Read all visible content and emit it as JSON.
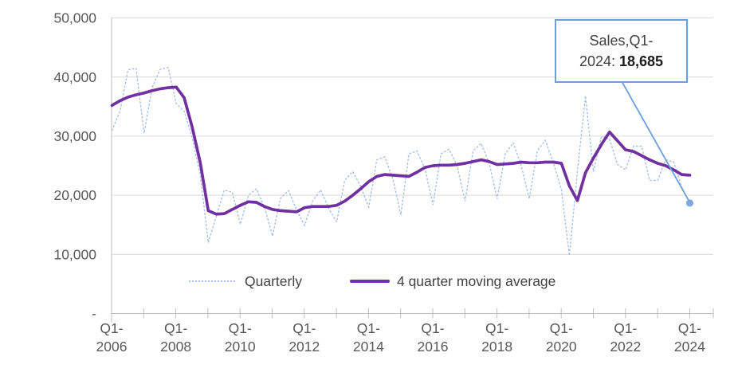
{
  "chart_data": {
    "type": "line",
    "title": "",
    "xlabel": "",
    "ylabel": "",
    "grid": true,
    "legend_position": "bottom-inside",
    "y_axis": {
      "min": 0,
      "max": 50000,
      "step": 10000
    },
    "y_tick_labels": [
      "50,000",
      "40,000",
      "30,000",
      "20,000",
      "10,000",
      "-"
    ],
    "x_tick_labels": [
      "Q1-2006",
      "Q1-2008",
      "Q1-2010",
      "Q1-2012",
      "Q1-2014",
      "Q1-2016",
      "Q1-2018",
      "Q1-2020",
      "Q1-2022",
      "Q1-2024"
    ],
    "quarters": [
      "Q1-2006",
      "Q2-2006",
      "Q3-2006",
      "Q4-2006",
      "Q1-2007",
      "Q2-2007",
      "Q3-2007",
      "Q4-2007",
      "Q1-2008",
      "Q2-2008",
      "Q3-2008",
      "Q4-2008",
      "Q1-2009",
      "Q2-2009",
      "Q3-2009",
      "Q4-2009",
      "Q1-2010",
      "Q2-2010",
      "Q3-2010",
      "Q4-2010",
      "Q1-2011",
      "Q2-2011",
      "Q3-2011",
      "Q4-2011",
      "Q1-2012",
      "Q2-2012",
      "Q3-2012",
      "Q4-2012",
      "Q1-2013",
      "Q2-2013",
      "Q3-2013",
      "Q4-2013",
      "Q1-2014",
      "Q2-2014",
      "Q3-2014",
      "Q4-2014",
      "Q1-2015",
      "Q2-2015",
      "Q3-2015",
      "Q4-2015",
      "Q1-2016",
      "Q2-2016",
      "Q3-2016",
      "Q4-2016",
      "Q1-2017",
      "Q2-2017",
      "Q3-2017",
      "Q4-2017",
      "Q1-2018",
      "Q2-2018",
      "Q3-2018",
      "Q4-2018",
      "Q1-2019",
      "Q2-2019",
      "Q3-2019",
      "Q4-2019",
      "Q1-2020",
      "Q2-2020",
      "Q3-2020",
      "Q4-2020",
      "Q1-2021",
      "Q2-2021",
      "Q3-2021",
      "Q4-2021",
      "Q1-2022",
      "Q2-2022",
      "Q3-2022",
      "Q4-2022",
      "Q1-2023",
      "Q2-2023",
      "Q3-2023",
      "Q4-2023",
      "Q1-2024"
    ],
    "series": [
      {
        "name": "Quarterly",
        "style": "dotted",
        "color": "#a9bfe7",
        "values": [
          31000,
          34200,
          41200,
          41500,
          30500,
          38200,
          41300,
          41600,
          35500,
          34200,
          29700,
          23400,
          12000,
          16500,
          20900,
          20500,
          15100,
          20000,
          21100,
          18000,
          13100,
          19500,
          20800,
          17500,
          14900,
          19000,
          20900,
          17800,
          15500,
          22500,
          24000,
          21500,
          18000,
          26000,
          26500,
          22800,
          16700,
          27000,
          27500,
          24500,
          18400,
          27000,
          27800,
          25000,
          19000,
          27500,
          28800,
          25500,
          19400,
          27000,
          28900,
          25000,
          19400,
          27500,
          29300,
          25500,
          21000,
          9800,
          24000,
          36800,
          24000,
          30000,
          29500,
          25200,
          24300,
          28300,
          28300,
          22500,
          22500,
          26000,
          25600,
          21400,
          18685
        ]
      },
      {
        "name": "4 quarter moving average",
        "style": "solid",
        "color": "#7030a0",
        "values": [
          35200,
          36000,
          36600,
          37000,
          37300,
          37700,
          38000,
          38200,
          38300,
          36500,
          31500,
          25500,
          17400,
          16800,
          16900,
          17600,
          18300,
          18900,
          18800,
          18100,
          17600,
          17400,
          17300,
          17200,
          17900,
          18100,
          18100,
          18100,
          18300,
          19000,
          20000,
          21100,
          22300,
          23200,
          23500,
          23400,
          23300,
          23200,
          23900,
          24700,
          25000,
          25100,
          25100,
          25200,
          25400,
          25700,
          26000,
          25700,
          25200,
          25300,
          25400,
          25600,
          25500,
          25500,
          25600,
          25600,
          25400,
          21600,
          19100,
          23800,
          26300,
          28600,
          30700,
          29200,
          27700,
          27400,
          26700,
          26000,
          25400,
          25000,
          24300,
          23500,
          23400
        ]
      }
    ],
    "annotation": {
      "line1": "Sales,Q1-",
      "line2_prefix": "2024: ",
      "value": "18,685",
      "points_to_quarter": "Q1-2024",
      "points_to_value": 18685
    }
  },
  "legend": {
    "items": [
      {
        "label": "Quarterly"
      },
      {
        "label": "4 quarter moving average"
      }
    ]
  },
  "colors": {
    "quarterly_line": "#a9bfe7",
    "moving_average_line": "#7030a0",
    "callout_border": "#6d9edb",
    "callout_dot": "#7fa9dc",
    "gridline": "#d9d9d9",
    "axis_line": "#bfbfbf",
    "tick_label_text": "#595959",
    "legend_text": "#424242",
    "annotation_text": "#404040"
  }
}
